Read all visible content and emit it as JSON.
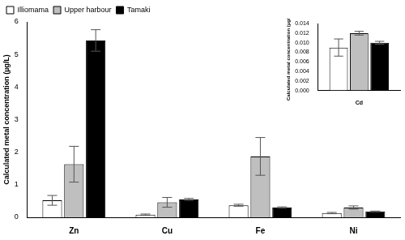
{
  "chart_data": [
    {
      "type": "bar",
      "y_label": "Calculated metal concentration (µg/L)",
      "categories": [
        "Zn",
        "Cu",
        "Fe",
        "Ni"
      ],
      "series": [
        {
          "name": "Illiomama",
          "color": "#ffffff",
          "values": [
            0.52,
            0.08,
            0.37,
            0.13
          ],
          "errors": [
            0.15,
            0.02,
            0.03,
            0.02
          ]
        },
        {
          "name": "Upper harbour",
          "color": "#bfbfbf",
          "values": [
            1.63,
            0.46,
            1.87,
            0.3
          ],
          "errors": [
            0.55,
            0.15,
            0.58,
            0.05
          ]
        },
        {
          "name": "Tamaki",
          "color": "#000000",
          "values": [
            5.43,
            0.55,
            0.3,
            0.18
          ],
          "errors": [
            0.33,
            0.03,
            0.02,
            0.01
          ]
        }
      ],
      "ylim": [
        0,
        6
      ],
      "yticks": [
        0,
        1,
        2,
        3,
        4,
        5,
        6
      ],
      "grid": false,
      "legend": "top-left"
    },
    {
      "type": "bar",
      "y_label": "Calculated metal concentration (µg/L)",
      "categories": [
        "Cd"
      ],
      "series": [
        {
          "name": "Illiomama",
          "color": "#ffffff",
          "values": [
            0.009
          ],
          "errors": [
            0.0018
          ]
        },
        {
          "name": "Upper harbour",
          "color": "#bfbfbf",
          "values": [
            0.012
          ],
          "errors": [
            0.0004
          ]
        },
        {
          "name": "Tamaki",
          "color": "#000000",
          "values": [
            0.01
          ],
          "errors": [
            0.0003
          ]
        }
      ],
      "ylim": [
        0,
        0.014
      ],
      "yticks": [
        {
          "value": 0,
          "label": "0.000"
        },
        {
          "value": 0.002,
          "label": "0.002"
        },
        {
          "value": 0.004,
          "label": "0.004"
        },
        {
          "value": 0.006,
          "label": "0.006"
        },
        {
          "value": 0.008,
          "label": "0.008"
        },
        {
          "value": 0.01,
          "label": "0.010"
        },
        {
          "value": 0.012,
          "label": "0.012"
        },
        {
          "value": 0.014,
          "label": "0.014"
        }
      ],
      "grid": false
    }
  ]
}
